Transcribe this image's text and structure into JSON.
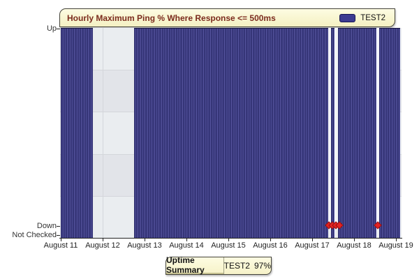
{
  "chart": {
    "title": "Hourly Maximum Ping % Where Response <= 500ms",
    "legend": [
      {
        "label": "TEST2",
        "color": "#3c3b91"
      }
    ],
    "axis": {
      "y_labels": [
        "Up",
        "Down",
        "Not Checked"
      ],
      "x_labels": [
        "August 11",
        "August 12",
        "August 13",
        "August 14",
        "August 15",
        "August 16",
        "August 17",
        "August 18",
        "August 19"
      ]
    }
  },
  "summary": {
    "heading": "Uptime Summary",
    "series_name": "TEST2",
    "uptime_percent": "97%"
  },
  "chart_data": {
    "type": "bar",
    "title": "Hourly Maximum Ping % Where Response <= 500ms",
    "series": [
      {
        "name": "TEST2",
        "color": "#29286a",
        "uptime": "97%"
      }
    ],
    "x_labels": [
      "August 11",
      "August 12",
      "August 13",
      "August 14",
      "August 15",
      "August 16",
      "August 17",
      "August 18",
      "August 19"
    ],
    "y_labels": [
      "Up",
      "Down",
      "Not Checked"
    ],
    "x_axis_note": "day offset 0 = August 11, 1 unit = 1 day, hourly bars",
    "up_segments_days": [
      [
        0,
        0.77
      ],
      [
        1.75,
        6.375
      ],
      [
        6.45,
        6.533
      ],
      [
        6.617,
        7.533
      ],
      [
        7.6,
        8.1
      ]
    ],
    "down_segments_days": [
      [
        6.375,
        6.45
      ],
      [
        6.533,
        6.617
      ],
      [
        7.533,
        7.6
      ]
    ],
    "not_checked_segments_days": [
      [
        0.77,
        1.75
      ]
    ],
    "down_marker_days": [
      6.4,
      6.483,
      6.567,
      6.65,
      7.567
    ],
    "colors": {
      "bar": "#29286a",
      "bar_stripe": "#605fab",
      "down_marker": "#e32222",
      "plot_background": "#eaedf0",
      "plot_band_alt": "#e2e4e9",
      "gridline": "#d4d6db",
      "title_text": "#7b2b1d",
      "box_background": "#fbf9d8"
    },
    "legend_position": "top-right-inside-title-bar",
    "grid": true
  }
}
